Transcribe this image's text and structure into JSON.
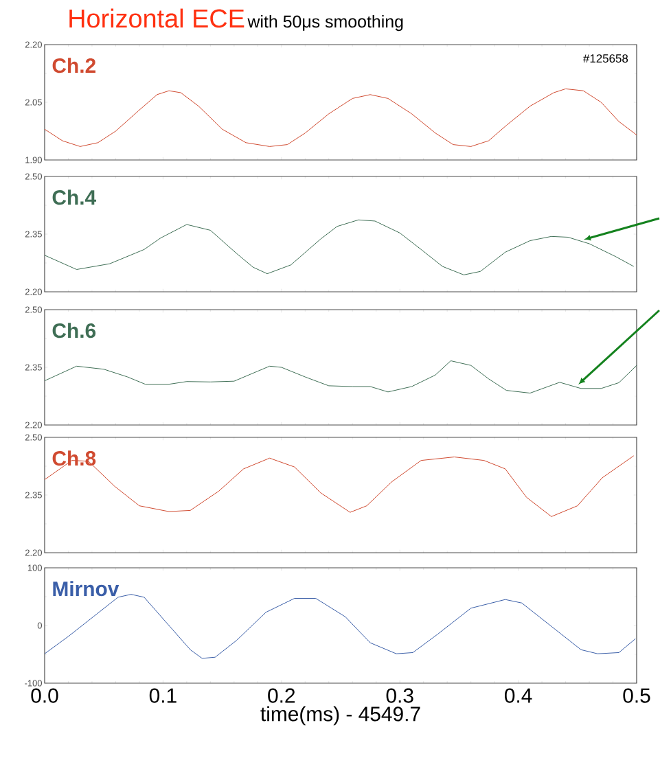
{
  "chart_data": [
    {
      "type": "line",
      "title": "Horizontal ECE",
      "subtitle": "with 50μs smoothing",
      "x": [
        0,
        0.015,
        0.03,
        0.045,
        0.06,
        0.08,
        0.095,
        0.105,
        0.115,
        0.13,
        0.15,
        0.17,
        0.19,
        0.205,
        0.22,
        0.24,
        0.26,
        0.275,
        0.29,
        0.31,
        0.33,
        0.345,
        0.36,
        0.375,
        0.39,
        0.41,
        0.43,
        0.44,
        0.455,
        0.47,
        0.485,
        0.5
      ],
      "series": [
        {
          "name": "Ch.2",
          "color": "#d04a30",
          "values": [
            1.98,
            1.95,
            1.935,
            1.945,
            1.975,
            2.03,
            2.07,
            2.08,
            2.075,
            2.04,
            1.98,
            1.945,
            1.935,
            1.94,
            1.97,
            2.02,
            2.06,
            2.07,
            2.06,
            2.02,
            1.97,
            1.94,
            1.935,
            1.95,
            1.99,
            2.04,
            2.075,
            2.085,
            2.08,
            2.05,
            2.0,
            1.965
          ]
        }
      ],
      "xlim": [
        0,
        0.5
      ],
      "xticks": [
        {
          "value": 0,
          "label": null
        },
        {
          "value": 0.1,
          "label": null
        },
        {
          "value": 0.2,
          "label": null
        },
        {
          "value": 0.3,
          "label": null
        },
        {
          "value": 0.4,
          "label": null
        },
        {
          "value": 0.5,
          "label": null
        }
      ],
      "ylim": [
        1.9,
        2.2
      ],
      "yticks": [
        {
          "value": 1.9,
          "label": "1.90"
        },
        {
          "value": 2.05,
          "label": "2.05"
        },
        {
          "value": 2.2,
          "label": "2.20"
        }
      ],
      "tick_labels": "y",
      "annotations": [
        "#125658"
      ]
    },
    {
      "type": "line",
      "x": [
        0,
        0.027,
        0.055,
        0.084,
        0.098,
        0.12,
        0.14,
        0.162,
        0.176,
        0.188,
        0.208,
        0.233,
        0.247,
        0.265,
        0.279,
        0.3,
        0.318,
        0.336,
        0.354,
        0.368,
        0.389,
        0.41,
        0.428,
        0.442,
        0.46,
        0.482,
        0.4975
      ],
      "series": [
        {
          "name": "Ch.4",
          "color": "#3f6e55",
          "values": [
            2.295,
            2.258,
            2.273,
            2.31,
            2.34,
            2.375,
            2.36,
            2.3,
            2.264,
            2.247,
            2.27,
            2.337,
            2.37,
            2.387,
            2.384,
            2.353,
            2.31,
            2.266,
            2.244,
            2.253,
            2.303,
            2.333,
            2.344,
            2.342,
            2.325,
            2.292,
            2.266
          ]
        }
      ],
      "xlim": [
        0,
        0.5
      ],
      "xticks": [
        {
          "value": 0,
          "label": null
        },
        {
          "value": 0.1,
          "label": null
        },
        {
          "value": 0.2,
          "label": null
        },
        {
          "value": 0.3,
          "label": null
        },
        {
          "value": 0.4,
          "label": null
        },
        {
          "value": 0.5,
          "label": null
        }
      ],
      "ylim": [
        2.2,
        2.5
      ],
      "yticks": [
        {
          "value": 2.2,
          "label": "2.20"
        },
        {
          "value": 2.35,
          "label": "2.35"
        },
        {
          "value": 2.5,
          "label": "2.50"
        }
      ],
      "tick_labels": "y"
    },
    {
      "type": "line",
      "x": [
        0,
        0.027,
        0.05,
        0.07,
        0.085,
        0.105,
        0.12,
        0.14,
        0.16,
        0.18,
        0.19,
        0.2,
        0.22,
        0.24,
        0.26,
        0.275,
        0.29,
        0.31,
        0.33,
        0.343,
        0.36,
        0.375,
        0.39,
        0.41,
        0.435,
        0.453,
        0.47,
        0.485,
        0.5
      ],
      "series": [
        {
          "name": "Ch.6",
          "color": "#3f6e55",
          "values": [
            2.315,
            2.353,
            2.345,
            2.325,
            2.306,
            2.306,
            2.313,
            2.312,
            2.314,
            2.34,
            2.353,
            2.35,
            2.325,
            2.302,
            2.3,
            2.3,
            2.286,
            2.3,
            2.33,
            2.367,
            2.355,
            2.32,
            2.29,
            2.283,
            2.311,
            2.295,
            2.295,
            2.31,
            2.355
          ]
        }
      ],
      "xlim": [
        0,
        0.5
      ],
      "xticks": [
        {
          "value": 0,
          "label": null
        },
        {
          "value": 0.1,
          "label": null
        },
        {
          "value": 0.2,
          "label": null
        },
        {
          "value": 0.3,
          "label": null
        },
        {
          "value": 0.4,
          "label": null
        },
        {
          "value": 0.5,
          "label": null
        }
      ],
      "ylim": [
        2.2,
        2.5
      ],
      "yticks": [
        {
          "value": 2.2,
          "label": "2.20"
        },
        {
          "value": 2.35,
          "label": "2.35"
        },
        {
          "value": 2.5,
          "label": "2.50"
        }
      ],
      "tick_labels": "y"
    },
    {
      "type": "line",
      "x": [
        0,
        0.023,
        0.037,
        0.059,
        0.08,
        0.105,
        0.123,
        0.147,
        0.168,
        0.19,
        0.211,
        0.233,
        0.258,
        0.272,
        0.293,
        0.318,
        0.346,
        0.371,
        0.389,
        0.407,
        0.428,
        0.45,
        0.471,
        0.4975
      ],
      "series": [
        {
          "name": "Ch.8",
          "color": "#d04a30",
          "values": [
            2.39,
            2.44,
            2.438,
            2.373,
            2.322,
            2.307,
            2.31,
            2.36,
            2.418,
            2.446,
            2.423,
            2.356,
            2.305,
            2.322,
            2.384,
            2.44,
            2.449,
            2.44,
            2.418,
            2.344,
            2.294,
            2.322,
            2.395,
            2.452
          ]
        }
      ],
      "xlim": [
        0,
        0.5
      ],
      "xticks": [
        {
          "value": 0,
          "label": null
        },
        {
          "value": 0.1,
          "label": null
        },
        {
          "value": 0.2,
          "label": null
        },
        {
          "value": 0.3,
          "label": null
        },
        {
          "value": 0.4,
          "label": null
        },
        {
          "value": 0.5,
          "label": null
        }
      ],
      "ylim": [
        2.2,
        2.5
      ],
      "yticks": [
        {
          "value": 2.2,
          "label": "2.20"
        },
        {
          "value": 2.35,
          "label": "2.35"
        },
        {
          "value": 2.5,
          "label": "2.50"
        }
      ],
      "tick_labels": "y"
    },
    {
      "type": "line",
      "xlabel": "time(ms) - 4549.7",
      "x": [
        0,
        0.02,
        0.041,
        0.062,
        0.073,
        0.084,
        0.105,
        0.123,
        0.133,
        0.144,
        0.162,
        0.187,
        0.211,
        0.229,
        0.254,
        0.275,
        0.297,
        0.311,
        0.332,
        0.36,
        0.389,
        0.403,
        0.432,
        0.453,
        0.467,
        0.485,
        0.499
      ],
      "series": [
        {
          "name": "Mirnov",
          "color": "#3a5ea8",
          "values": [
            -49,
            -19,
            15,
            49,
            54,
            49,
            0,
            -42,
            -57,
            -55,
            -26,
            23,
            47,
            47,
            15,
            -30,
            -49,
            -47,
            -15,
            30,
            45,
            39,
            -8,
            -42,
            -49,
            -47,
            -23
          ]
        }
      ],
      "xlim": [
        0,
        0.5
      ],
      "xticks": [
        {
          "value": 0,
          "label": "0.0"
        },
        {
          "value": 0.1,
          "label": "0.1"
        },
        {
          "value": 0.2,
          "label": "0.2"
        },
        {
          "value": 0.3,
          "label": "0.3"
        },
        {
          "value": 0.4,
          "label": "0.4"
        },
        {
          "value": 0.5,
          "label": "0.5"
        }
      ],
      "ylim": [
        -100,
        100
      ],
      "yticks": [
        -100,
        0,
        100
      ]
    }
  ]
}
